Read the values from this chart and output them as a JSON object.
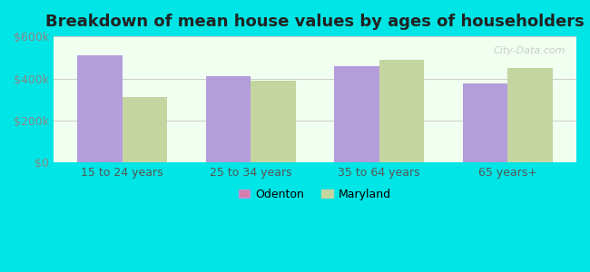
{
  "title": "Breakdown of mean house values by ages of householders",
  "categories": [
    "15 to 24 years",
    "25 to 34 years",
    "35 to 64 years",
    "65 years+"
  ],
  "odenton_values": [
    510000,
    410000,
    460000,
    375000
  ],
  "maryland_values": [
    310000,
    390000,
    490000,
    450000
  ],
  "odenton_color": "#b39ddb",
  "maryland_color": "#c5d5a0",
  "background_color": "#00e5e5",
  "plot_bg_color_top": "#f0fff0",
  "plot_bg_color_bottom": "#e8ffe8",
  "ylim": [
    0,
    600000
  ],
  "yticks": [
    0,
    200000,
    400000,
    600000
  ],
  "ytick_labels": [
    "$0",
    "$200k",
    "$400k",
    "$600k"
  ],
  "legend_odenton": "Odenton",
  "legend_maryland": "Maryland",
  "odenton_marker_color": "#d87cac",
  "maryland_marker_color": "#c5d5a0",
  "title_fontsize": 13,
  "tick_fontsize": 9,
  "legend_fontsize": 9,
  "bar_width": 0.35,
  "figsize": [
    6.5,
    3.0
  ],
  "dpi": 100
}
